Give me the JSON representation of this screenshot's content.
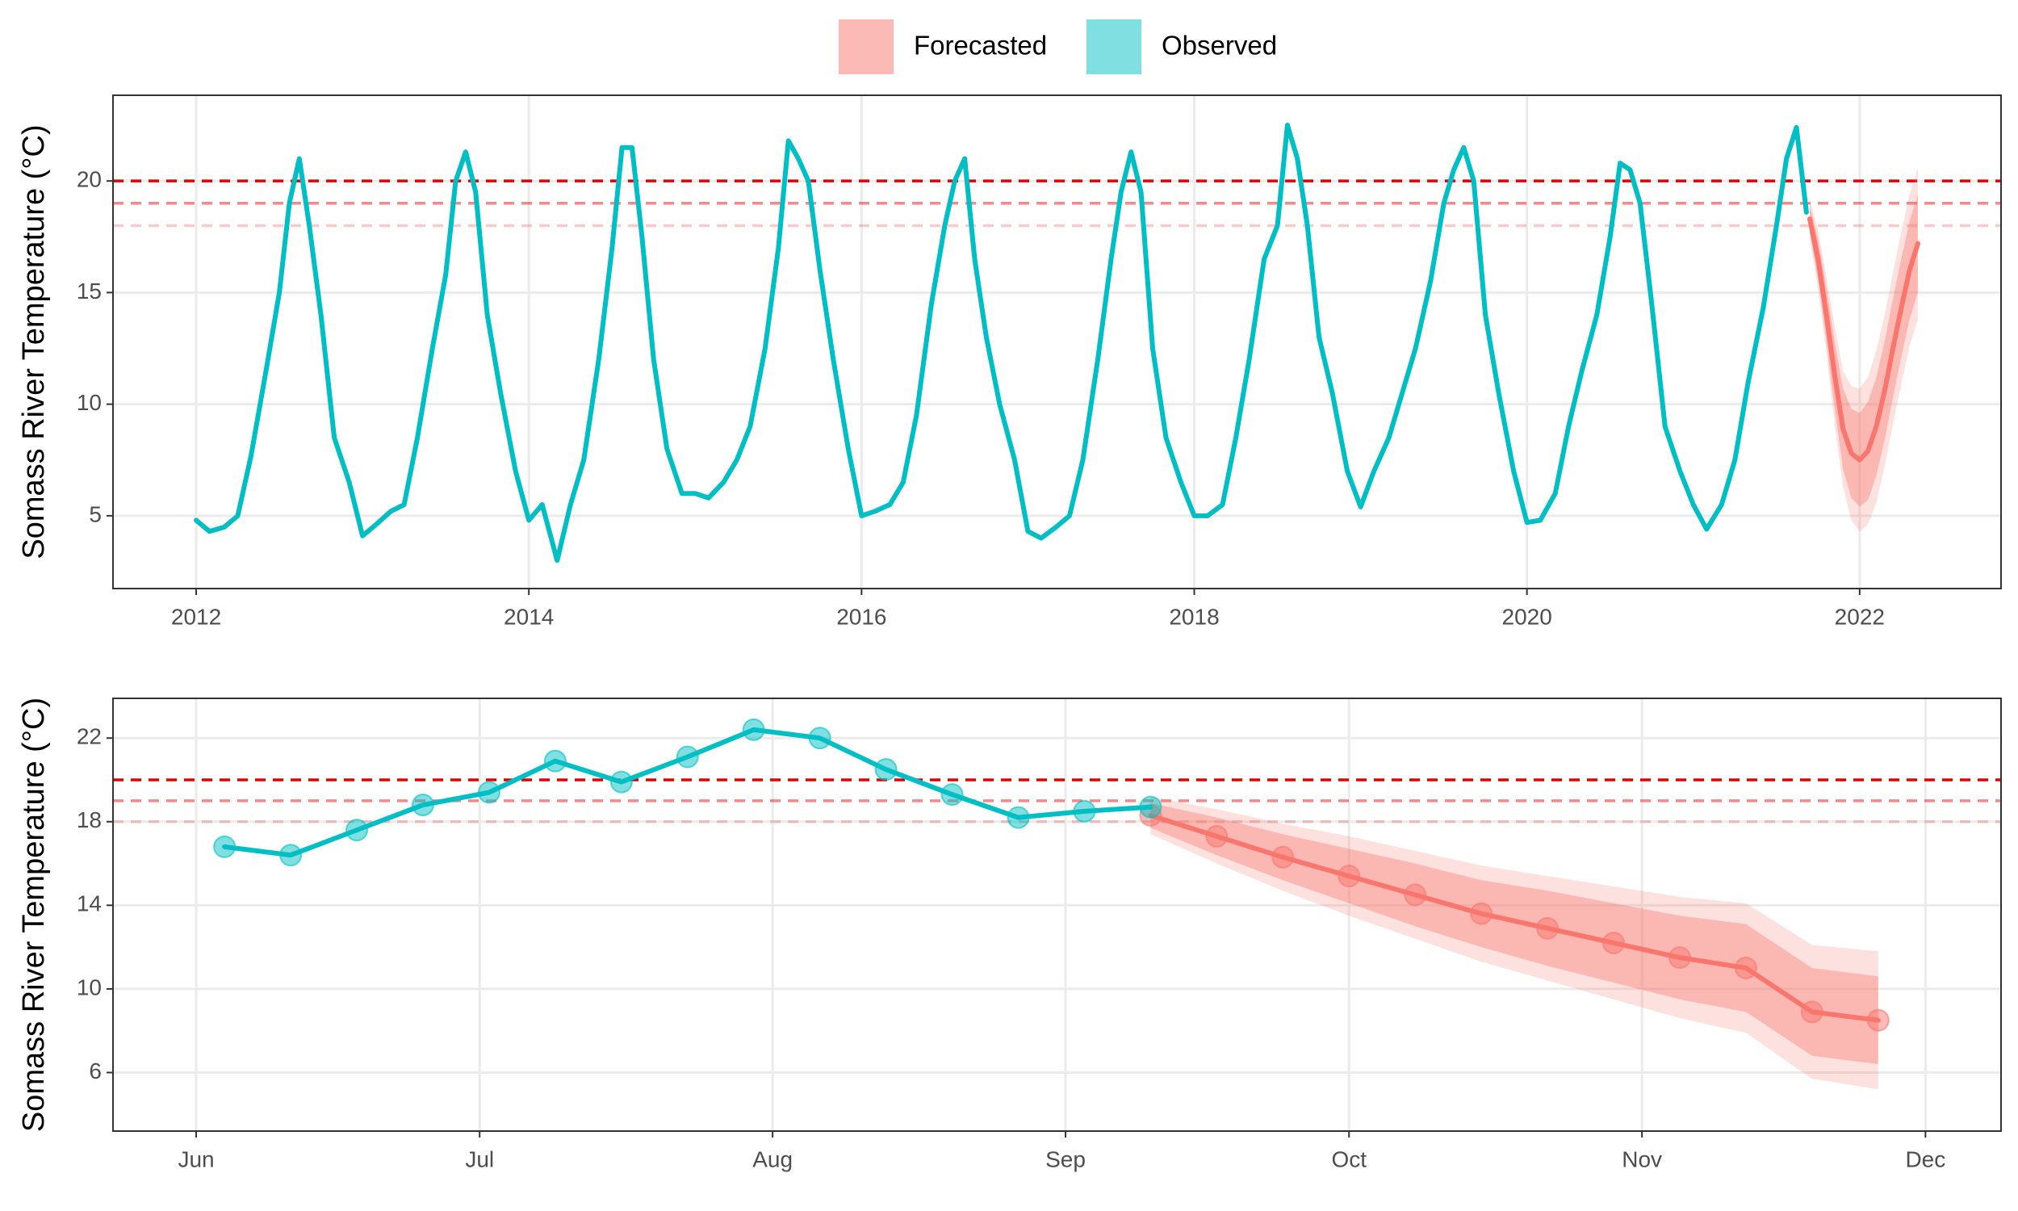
{
  "chart_data": [
    {
      "type": "line",
      "ylabel": "Somass River Temperature (°C)",
      "legend": "top",
      "grid": true,
      "markers": false,
      "xlim": [
        2011.5,
        2022.85
      ],
      "ylim": [
        1.74,
        23.84
      ],
      "xticks": [
        2012,
        2014,
        2016,
        2018,
        2020,
        2022
      ],
      "yticks": [
        5,
        10,
        15,
        20
      ],
      "hlines": [
        20,
        19,
        18
      ],
      "hline_color": "#e00000",
      "series": [
        {
          "name": "Forecasted",
          "color": "#F8766D",
          "x": [
            2021.7,
            2021.75,
            2021.8,
            2021.85,
            2021.9,
            2021.95,
            2022.0,
            2022.05,
            2022.1,
            2022.15,
            2022.2,
            2022.25,
            2022.3,
            2022.35
          ],
          "values": [
            18.3,
            16.5,
            14.0,
            11.3,
            8.9,
            7.8,
            7.5,
            7.9,
            9.0,
            10.6,
            12.5,
            14.3,
            16.0,
            17.2
          ],
          "inner_lower": [
            17.7,
            15.6,
            12.8,
            9.8,
            7.1,
            5.8,
            5.4,
            5.7,
            6.8,
            8.4,
            10.3,
            12.1,
            13.8,
            15.0
          ],
          "inner_upper": [
            18.9,
            17.4,
            15.2,
            12.8,
            10.7,
            9.8,
            9.6,
            10.1,
            11.2,
            12.8,
            14.7,
            16.5,
            18.2,
            19.4
          ],
          "outer_lower": [
            17.4,
            15.2,
            12.3,
            9.1,
            6.3,
            4.8,
            4.3,
            4.6,
            5.6,
            7.2,
            9.1,
            10.9,
            12.6,
            13.8
          ],
          "outer_upper": [
            19.2,
            17.8,
            15.7,
            13.5,
            11.5,
            10.8,
            10.7,
            11.2,
            12.4,
            14.0,
            15.9,
            17.7,
            19.4,
            20.6
          ]
        },
        {
          "name": "Observed",
          "color": "#00BFC4",
          "x": [
            2012.0,
            2012.08,
            2012.17,
            2012.25,
            2012.33,
            2012.42,
            2012.5,
            2012.56,
            2012.62,
            2012.68,
            2012.75,
            2012.83,
            2012.92,
            2013.0,
            2013.08,
            2013.17,
            2013.25,
            2013.33,
            2013.42,
            2013.5,
            2013.56,
            2013.62,
            2013.68,
            2013.75,
            2013.83,
            2013.92,
            2014.0,
            2014.08,
            2014.17,
            2014.25,
            2014.33,
            2014.42,
            2014.5,
            2014.56,
            2014.62,
            2014.68,
            2014.75,
            2014.83,
            2014.92,
            2015.0,
            2015.08,
            2015.17,
            2015.25,
            2015.33,
            2015.42,
            2015.5,
            2015.56,
            2015.62,
            2015.68,
            2015.75,
            2015.83,
            2015.92,
            2016.0,
            2016.08,
            2016.17,
            2016.25,
            2016.33,
            2016.42,
            2016.5,
            2016.56,
            2016.62,
            2016.68,
            2016.75,
            2016.83,
            2016.92,
            2017.0,
            2017.08,
            2017.17,
            2017.25,
            2017.33,
            2017.42,
            2017.5,
            2017.56,
            2017.62,
            2017.68,
            2017.75,
            2017.83,
            2017.92,
            2018.0,
            2018.08,
            2018.17,
            2018.25,
            2018.33,
            2018.42,
            2018.5,
            2018.56,
            2018.62,
            2018.68,
            2018.75,
            2018.83,
            2018.92,
            2019.0,
            2019.08,
            2019.17,
            2019.25,
            2019.33,
            2019.42,
            2019.5,
            2019.56,
            2019.62,
            2019.68,
            2019.75,
            2019.83,
            2019.92,
            2020.0,
            2020.08,
            2020.17,
            2020.25,
            2020.33,
            2020.42,
            2020.5,
            2020.56,
            2020.62,
            2020.68,
            2020.75,
            2020.83,
            2020.92,
            2021.0,
            2021.08,
            2021.17,
            2021.25,
            2021.33,
            2021.42,
            2021.5,
            2021.56,
            2021.62,
            2021.68
          ],
          "values": [
            4.8,
            4.3,
            4.5,
            5.0,
            7.7,
            11.5,
            15.0,
            19.0,
            21.0,
            18.0,
            14.0,
            8.5,
            6.5,
            4.1,
            4.6,
            5.2,
            5.5,
            8.5,
            12.5,
            15.8,
            20.0,
            21.3,
            19.5,
            14.0,
            10.5,
            7.0,
            4.8,
            5.5,
            3.0,
            5.5,
            7.5,
            12.0,
            17.0,
            21.5,
            21.5,
            17.5,
            12.0,
            8.0,
            6.0,
            6.0,
            5.8,
            6.5,
            7.5,
            9.0,
            12.5,
            17.0,
            21.8,
            21.0,
            20.0,
            16.0,
            12.0,
            8.0,
            5.0,
            5.2,
            5.5,
            6.5,
            9.5,
            14.5,
            18.0,
            20.0,
            21.0,
            16.5,
            13.0,
            10.0,
            7.5,
            4.3,
            4.0,
            4.5,
            5.0,
            7.5,
            12.0,
            16.5,
            19.5,
            21.3,
            19.5,
            12.5,
            8.5,
            6.5,
            5.0,
            5.0,
            5.5,
            8.5,
            12.0,
            16.5,
            18.0,
            22.5,
            21.0,
            18.0,
            13.0,
            10.5,
            7.0,
            5.4,
            7.0,
            8.5,
            10.5,
            12.5,
            15.5,
            19.0,
            20.5,
            21.5,
            20.0,
            14.0,
            10.5,
            7.0,
            4.7,
            4.8,
            6.0,
            9.0,
            11.5,
            14.0,
            17.5,
            20.8,
            20.5,
            19.0,
            14.5,
            9.0,
            7.0,
            5.5,
            4.4,
            5.5,
            7.5,
            11.0,
            14.3,
            18.0,
            21.0,
            22.4,
            18.6
          ]
        }
      ]
    },
    {
      "type": "line",
      "ylabel": "Somass River Temperature (°C)",
      "grid": true,
      "markers": true,
      "xlim": [
        143.2,
        343
      ],
      "ylim": [
        3.2,
        23.9
      ],
      "xticks": [
        {
          "value": 152,
          "label": "Jun"
        },
        {
          "value": 182,
          "label": "Jul"
        },
        {
          "value": 213,
          "label": "Aug"
        },
        {
          "value": 244,
          "label": "Sep"
        },
        {
          "value": 274,
          "label": "Oct"
        },
        {
          "value": 305,
          "label": "Nov"
        },
        {
          "value": 335,
          "label": "Dec"
        }
      ],
      "yticks": [
        6,
        10,
        14,
        18,
        22
      ],
      "hlines": [
        20,
        19,
        18
      ],
      "hline_color": "#e00000",
      "series": [
        {
          "name": "Forecasted",
          "color": "#F8766D",
          "x": [
            253,
            260,
            267,
            274,
            281,
            288,
            295,
            302,
            309,
            316,
            323,
            330
          ],
          "values": [
            18.3,
            17.3,
            16.3,
            15.4,
            14.5,
            13.6,
            12.9,
            12.2,
            11.5,
            11.0,
            8.9,
            8.5
          ],
          "inner_lower": [
            17.7,
            16.4,
            15.2,
            14.1,
            13.0,
            12.0,
            11.1,
            10.3,
            9.5,
            8.9,
            6.8,
            6.4
          ],
          "inner_upper": [
            18.9,
            18.2,
            17.4,
            16.7,
            16.0,
            15.2,
            14.7,
            14.1,
            13.5,
            13.1,
            11.0,
            10.6
          ],
          "outer_lower": [
            17.4,
            16.0,
            14.7,
            13.5,
            12.4,
            11.3,
            10.4,
            9.5,
            8.6,
            7.9,
            5.7,
            5.2
          ],
          "outer_upper": [
            19.2,
            18.6,
            17.9,
            17.3,
            16.6,
            15.9,
            15.4,
            14.9,
            14.4,
            14.1,
            12.1,
            11.8
          ]
        },
        {
          "name": "Observed",
          "color": "#00BFC4",
          "x": [
            155,
            162,
            169,
            176,
            183,
            190,
            197,
            204,
            211,
            218,
            225,
            232,
            239,
            246,
            253
          ],
          "values": [
            16.8,
            16.4,
            17.6,
            18.8,
            19.4,
            20.9,
            19.9,
            21.1,
            22.4,
            22.0,
            20.5,
            19.3,
            18.2,
            18.5,
            18.7
          ]
        }
      ]
    }
  ]
}
